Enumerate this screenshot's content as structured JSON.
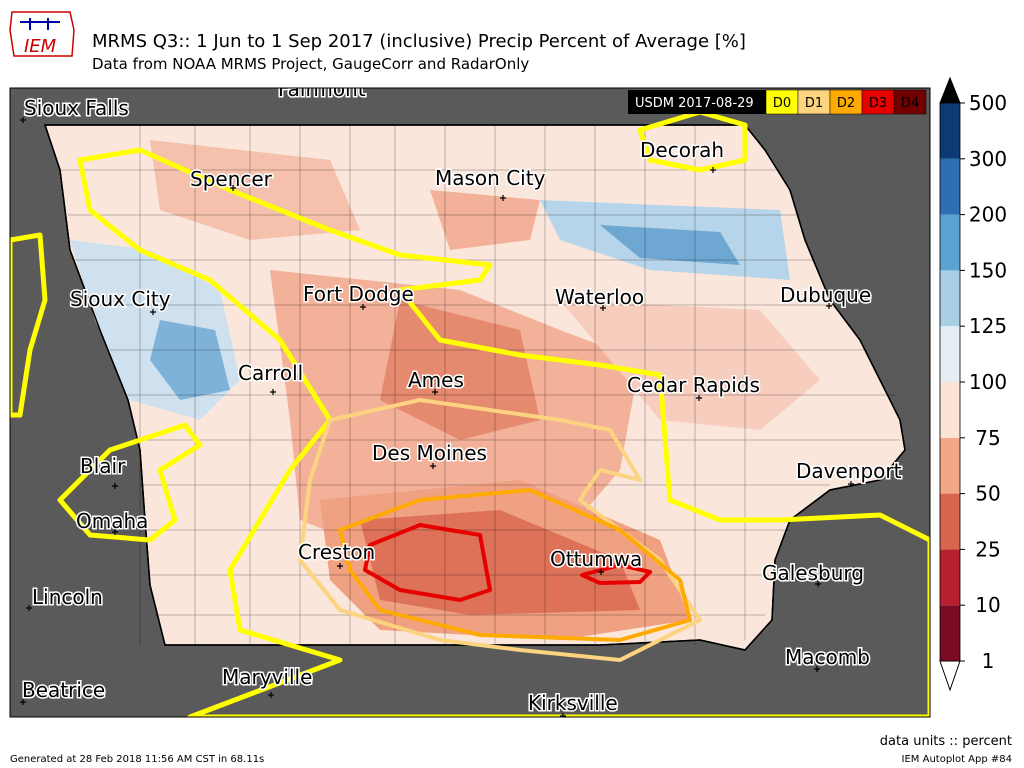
{
  "header": {
    "logo": "IEM",
    "title": "MRMS Q3:: 1 Jun to 1 Sep 2017 (inclusive) Precip Percent of Average [%]",
    "subtitle": "Data from NOAA MRMS Project, GaugeCorr and RadarOnly"
  },
  "map": {
    "cities": [
      "Sioux Falls",
      "Fairmont",
      "Spencer",
      "Mason City",
      "Decorah",
      "Sioux City",
      "Fort Dodge",
      "Waterloo",
      "Dubuque",
      "Carroll",
      "Ames",
      "Cedar Rapids",
      "Des Moines",
      "Blair",
      "Davenport",
      "Omaha",
      "Creston",
      "Ottumwa",
      "Galesburg",
      "Lincoln",
      "Macomb",
      "Maryville",
      "Beatrice",
      "Kirksville"
    ]
  },
  "usdm_legend": {
    "label": "USDM 2017-08-29",
    "categories": [
      {
        "name": "D0",
        "color": "#ffff00"
      },
      {
        "name": "D1",
        "color": "#fcd37f"
      },
      {
        "name": "D2",
        "color": "#ffaa00"
      },
      {
        "name": "D3",
        "color": "#e60000"
      },
      {
        "name": "D4",
        "color": "#730000"
      }
    ]
  },
  "colorbar": {
    "levels": [
      1,
      10,
      25,
      50,
      75,
      100,
      125,
      150,
      200,
      300,
      500
    ],
    "colors": [
      "#7a0b22",
      "#b7202f",
      "#d8664f",
      "#f2a787",
      "#fbe3d6",
      "#e6eef5",
      "#a9cfe5",
      "#5ba3d0",
      "#2c6fb5",
      "#0d3a75"
    ]
  },
  "footer": {
    "units": "data units :: percent",
    "generated": "Generated at 28 Feb 2018 11:56 AM CST in 68.11s",
    "app": "IEM Autoplot App #84"
  }
}
